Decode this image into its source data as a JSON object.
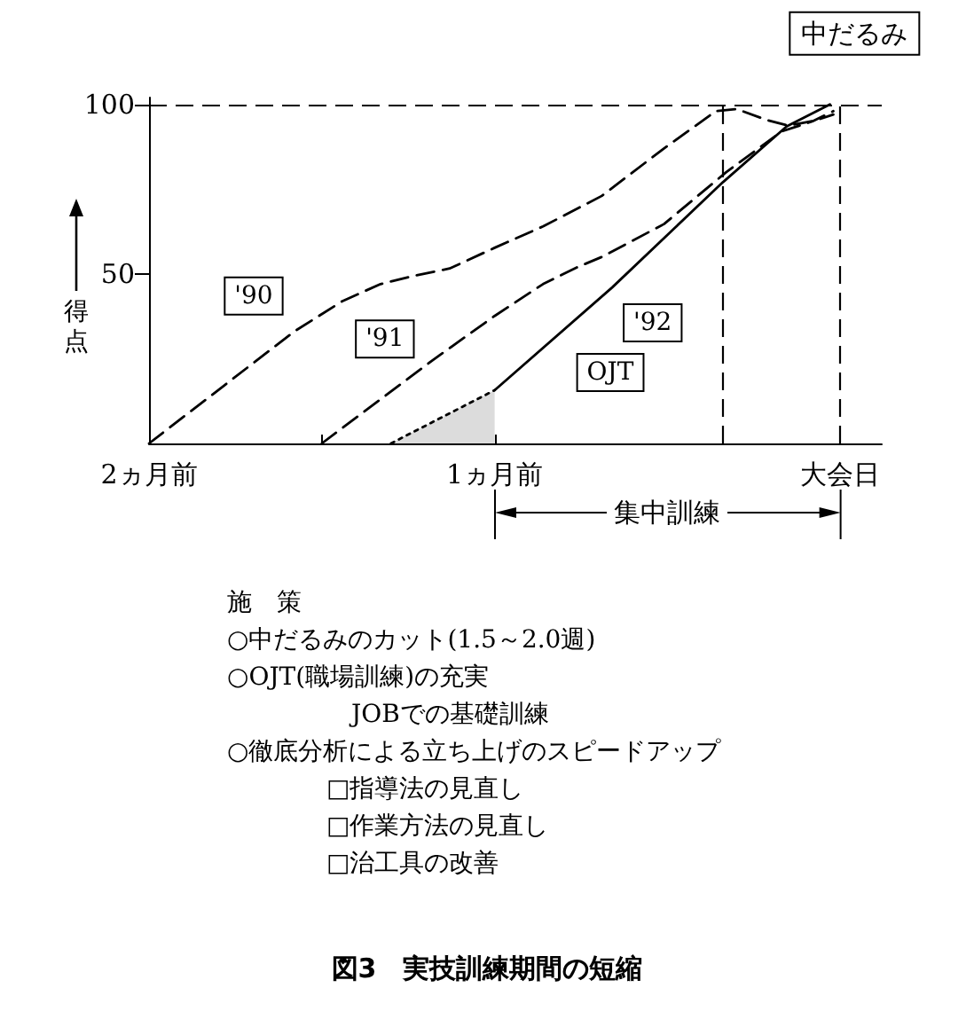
{
  "chart_data": {
    "type": "line",
    "title": "図3　実技訓練期間の短縮",
    "ylabel": "得点",
    "xlim": [
      -2,
      0.12
    ],
    "xticks": [
      {
        "value": -2,
        "label": "2ヵ月前"
      },
      {
        "value": -1.5,
        "label": null
      },
      {
        "value": -1,
        "label": "1ヵ月前"
      },
      {
        "value": 0,
        "label": "大会日"
      }
    ],
    "ylim": [
      0,
      102
    ],
    "yticks": [
      50,
      100
    ],
    "marker": "none",
    "series": [
      {
        "name": "'90",
        "color": "#000000",
        "line_style": "dashed",
        "x": [
          -2,
          -1.58,
          -1.44,
          -1.33,
          -1.23,
          -1.13,
          -1,
          -0.86,
          -0.69,
          -0.51,
          -0.36,
          -0.3,
          -0.21,
          -0.15,
          -0.07,
          -0.02
        ],
        "values": [
          0,
          33,
          42,
          47,
          49.5,
          51.6,
          57.7,
          64,
          73,
          87,
          98,
          98.6,
          95.3,
          93.7,
          95.3,
          97
        ]
      },
      {
        "name": "'91",
        "color": "#000000",
        "line_style": "dashed",
        "x": [
          -1.5,
          -1.18,
          -1,
          -0.86,
          -0.76,
          -0.69,
          -0.51,
          -0.33,
          -0.17,
          -0.08,
          -0.02
        ],
        "values": [
          0,
          24.5,
          37.6,
          47,
          52,
          55,
          64.7,
          80,
          92,
          95,
          98
        ]
      },
      {
        "name": "'92",
        "color": "#000000",
        "line_style": "solid",
        "x": [
          -1,
          -0.66,
          -0.34,
          -0.155,
          -0.03
        ],
        "values": [
          15.7,
          46,
          77,
          93.5,
          100
        ]
      },
      {
        "name": "OJT",
        "type": "area",
        "color": "#dcdcdc",
        "line_style": "dotted",
        "x": [
          -1.3,
          -1
        ],
        "values": [
          0,
          15.7
        ]
      }
    ],
    "ref_lines": [
      {
        "axis": "y",
        "value": 100,
        "line_style": "dashed"
      },
      {
        "axis": "x",
        "value": -0.335,
        "line_style": "dashed"
      },
      {
        "axis": "x",
        "value": 0,
        "line_style": "dashed"
      }
    ],
    "annotations": [
      {
        "text": "中だるみ",
        "x": -0.2,
        "y": 95
      },
      "集中訓練",
      "施　策",
      "○中だるみのカット(1.5～2.0週)",
      "○OJT(職場訓練)の充実",
      "　　　　　JOBでの基礎訓練",
      "○徹底分析による立ち上げのスピードアップ",
      "　　　　□指導法の見直し",
      "　　　　□作業方法の見直し",
      "　　　　□治工具の改善"
    ]
  }
}
